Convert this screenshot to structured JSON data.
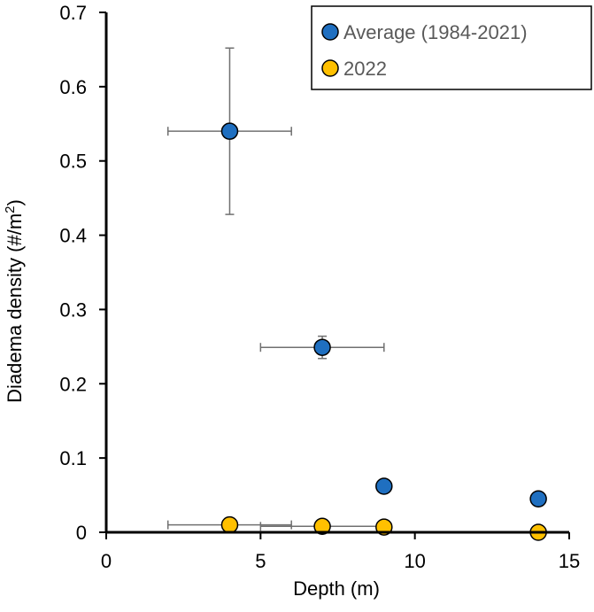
{
  "chart_data": {
    "type": "scatter",
    "xlabel": "Depth (m)",
    "ylabel": {
      "main": "Diadema density (#/m",
      "sup": "2",
      "end": ")"
    },
    "xlim": [
      0,
      15
    ],
    "ylim": [
      0,
      0.7
    ],
    "x_ticks": [
      0,
      5,
      10,
      15
    ],
    "x_tick_labels": [
      "0",
      "5",
      "10",
      "15"
    ],
    "y_ticks": [
      0,
      0.1,
      0.2,
      0.3,
      0.4,
      0.5,
      0.6,
      0.7
    ],
    "y_tick_labels": [
      "0",
      "0.1",
      "0.2",
      "0.3",
      "0.4",
      "0.5",
      "0.6",
      "0.7"
    ],
    "grid": false,
    "legend_position": "top-right",
    "series": [
      {
        "name": "Average (1984-2021)",
        "color": "#1f6fc0",
        "points": [
          {
            "x": 4,
            "y": 0.54,
            "xerr": 2,
            "yerr": 0.112
          },
          {
            "x": 7,
            "y": 0.249,
            "xerr": 2,
            "yerr": 0.015
          },
          {
            "x": 9,
            "y": 0.062
          },
          {
            "x": 14,
            "y": 0.045
          }
        ]
      },
      {
        "name": "2022",
        "color": "#ffc000",
        "points": [
          {
            "x": 4,
            "y": 0.01,
            "xerr": 2
          },
          {
            "x": 7,
            "y": 0.008,
            "xerr": 2
          },
          {
            "x": 9,
            "y": 0.007
          },
          {
            "x": 14,
            "y": 0.0
          }
        ]
      }
    ]
  }
}
